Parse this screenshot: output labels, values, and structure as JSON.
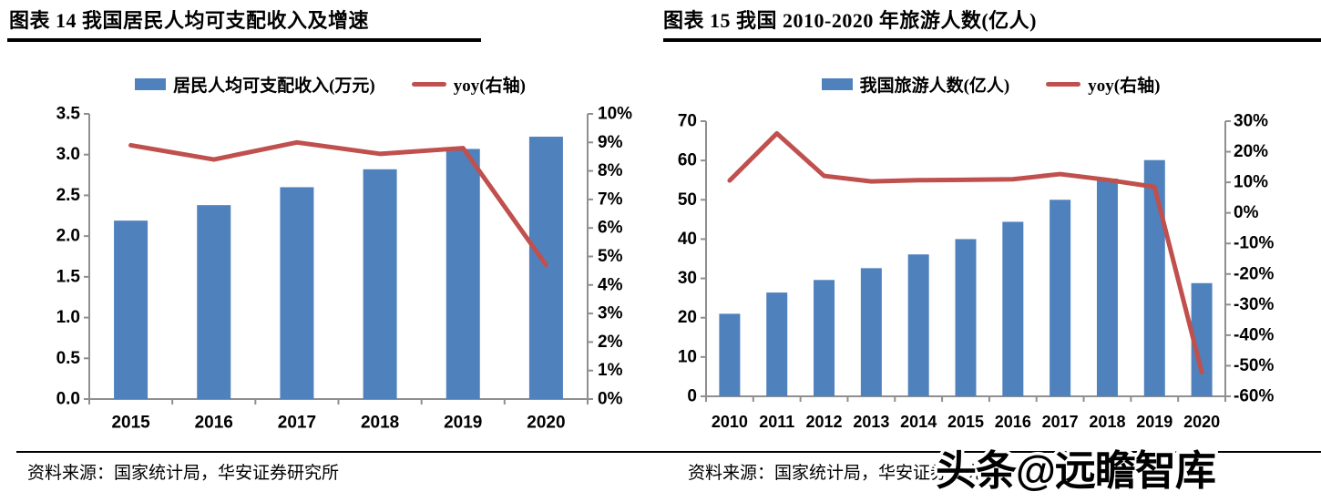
{
  "page": {
    "watermark": "头条@远瞻智库"
  },
  "colors": {
    "bar": "#4F81BD",
    "line": "#C0504D",
    "axis": "#8F8F8F",
    "text": "#000000"
  },
  "chart_data": [
    {
      "type": "bar",
      "title": "图表 14  我国居民人均可支配收入及增速",
      "source": "资料来源：国家统计局，华安证券研究所",
      "legend_position": "top",
      "grid": false,
      "categories": [
        "2015",
        "2016",
        "2017",
        "2018",
        "2019",
        "2020"
      ],
      "series": [
        {
          "name": "居民人均可支配收入(万元)",
          "type": "bar",
          "axis": "left",
          "values": [
            2.19,
            2.38,
            2.6,
            2.82,
            3.07,
            3.22
          ]
        },
        {
          "name": "yoy(右轴)",
          "type": "line",
          "axis": "right",
          "values": [
            8.9,
            8.4,
            9.0,
            8.6,
            8.8,
            4.7
          ]
        }
      ],
      "left_axis": {
        "min": 0,
        "max": 3.5,
        "step": 0.5,
        "decimals": 1,
        "suffix": ""
      },
      "right_axis": {
        "min": 0,
        "max": 10,
        "step": 1,
        "decimals": 0,
        "suffix": "%"
      }
    },
    {
      "type": "bar",
      "title": "图表 15  我国 2010-2020 年旅游人数(亿人)",
      "source": "资料来源：国家统计局，华安证券研究所",
      "legend_position": "top",
      "grid": false,
      "categories": [
        "2010",
        "2011",
        "2012",
        "2013",
        "2014",
        "2015",
        "2016",
        "2017",
        "2018",
        "2019",
        "2020"
      ],
      "series": [
        {
          "name": "我国旅游人数(亿人)",
          "type": "bar",
          "axis": "left",
          "values": [
            21.0,
            26.4,
            29.6,
            32.6,
            36.1,
            40.0,
            44.4,
            50.0,
            55.4,
            60.1,
            28.8
          ]
        },
        {
          "name": "yoy(右轴)",
          "type": "line",
          "axis": "right",
          "values": [
            10.6,
            26.0,
            12.1,
            10.3,
            10.7,
            10.8,
            11.0,
            12.7,
            10.8,
            8.5,
            -52.1
          ]
        }
      ],
      "left_axis": {
        "min": 0,
        "max": 70,
        "step": 10,
        "decimals": 0,
        "suffix": ""
      },
      "right_axis": {
        "min": -60,
        "max": 30,
        "step": 10,
        "decimals": 0,
        "suffix": "%"
      }
    }
  ]
}
